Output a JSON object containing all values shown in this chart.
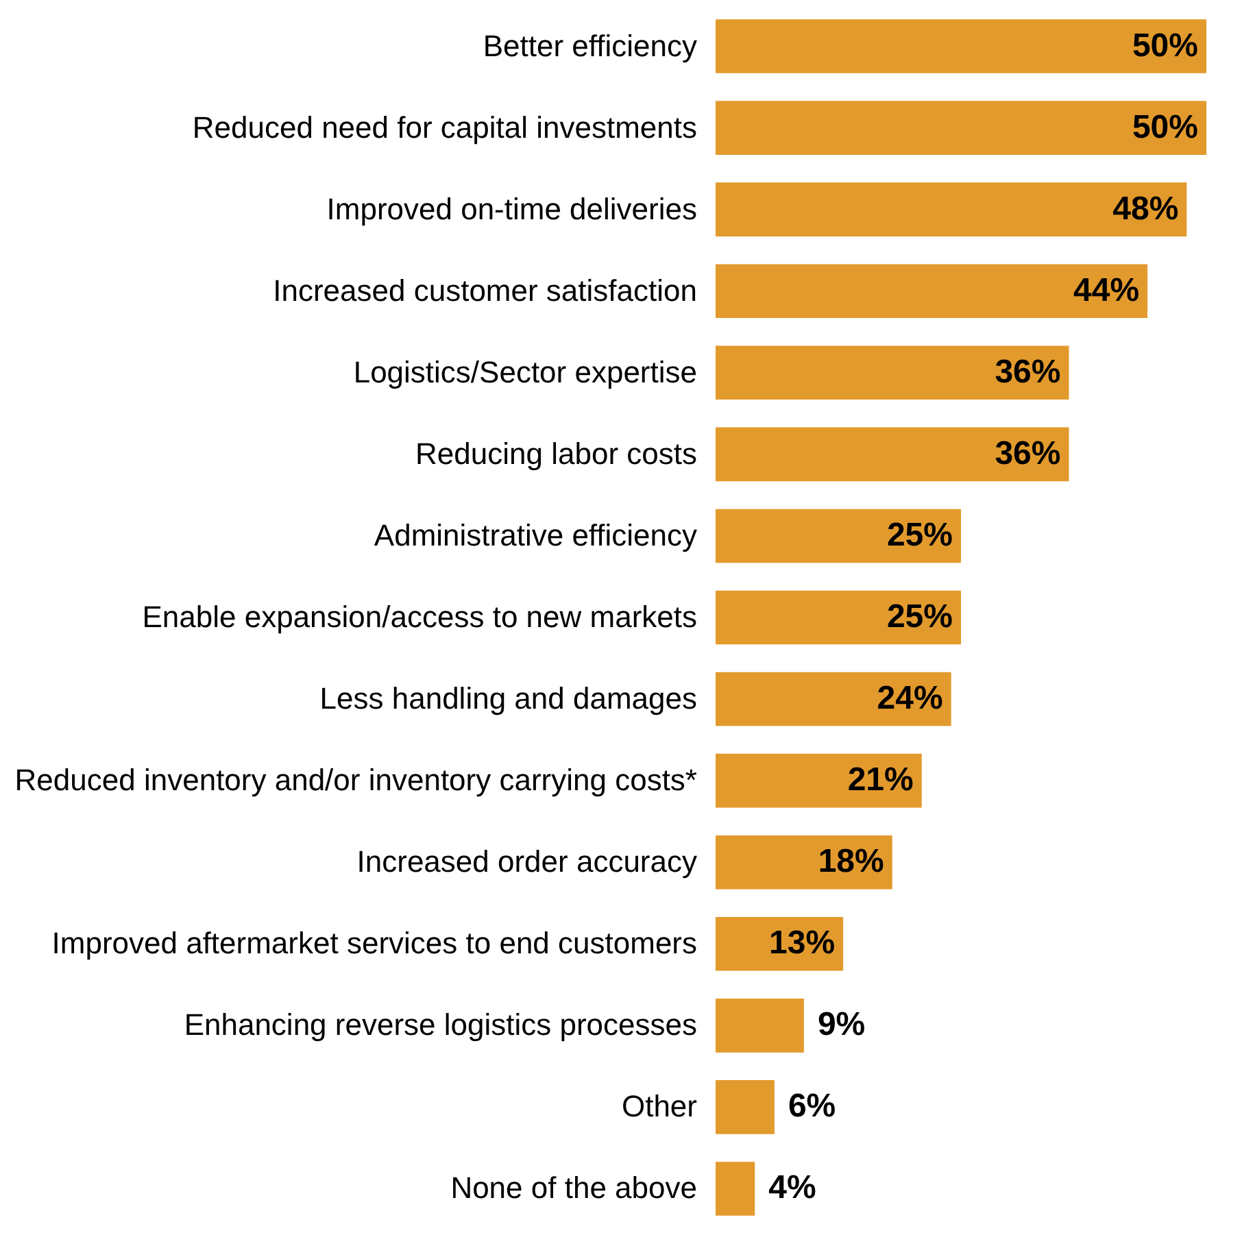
{
  "chart_data": {
    "type": "bar",
    "orientation": "horizontal",
    "categories": [
      "Better efficiency",
      "Reduced need for capital investments",
      "Improved on-time deliveries",
      "Increased customer satisfaction",
      "Logistics/Sector expertise",
      "Reducing labor costs",
      "Administrative efficiency",
      "Enable expansion/access to new markets",
      "Less handling and damages",
      "Reduced inventory and/or inventory carrying costs*",
      "Increased order accuracy",
      "Improved aftermarket services to end customers",
      "Enhancing reverse logistics processes",
      "Other",
      "None of the above"
    ],
    "values": [
      50,
      50,
      48,
      44,
      36,
      36,
      25,
      25,
      24,
      21,
      18,
      13,
      9,
      6,
      4
    ],
    "value_labels": [
      "50%",
      "50%",
      "48%",
      "44%",
      "36%",
      "36%",
      "25%",
      "25%",
      "24%",
      "21%",
      "18%",
      "13%",
      "9%",
      "6%",
      "4%"
    ],
    "color": "#e39a2d"
  }
}
